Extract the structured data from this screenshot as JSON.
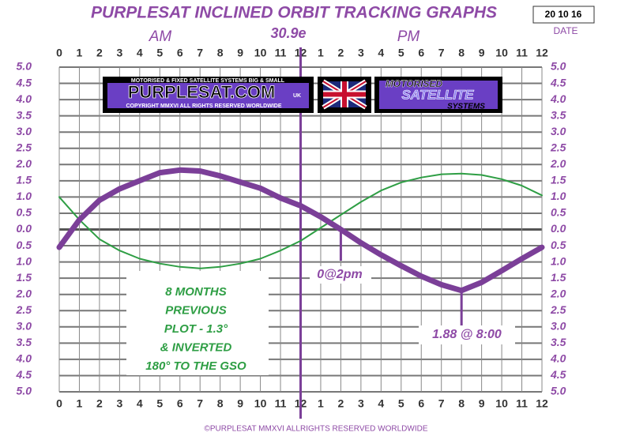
{
  "chart_data": {
    "type": "line",
    "title": "PURPLESAT INCLINED ORBIT TRACKING GRAPHS",
    "date": "20 10 16",
    "date_label": "DATE",
    "am_label": "AM",
    "pm_label": "PM",
    "position": "30.9e",
    "footer": "©PURPLESAT MMXVI ALLRIGHTS RESERVED WORLDWIDE",
    "banner": {
      "tagline": "MOTORISED & FIXED SATELLITE SYSTEMS BIG & SMALL",
      "site": "PURPLESAT.COM",
      "uk": "UK",
      "copyright": "COPYRIGHT MMXVI ALL RIGHTS RESERVED WORLDWIDE",
      "word1": "MOTORISED",
      "word2": "SATELLITE",
      "word3": "SYSTEMS"
    },
    "note_lines": [
      "8 MONTHS",
      "PREVIOUS",
      "PLOT - 1.3°",
      "& INVERTED",
      "180° TO THE GSO"
    ],
    "crossing_label": "0@2pm",
    "min_label": "1.88 @ 8:00",
    "x": [
      0,
      1,
      2,
      3,
      4,
      5,
      6,
      7,
      8,
      9,
      10,
      11,
      12,
      13,
      14,
      15,
      16,
      17,
      18,
      19,
      20,
      21,
      22,
      23,
      24
    ],
    "series": [
      {
        "color": "#7b3f98",
        "values": [
          -0.55,
          0.3,
          0.9,
          1.25,
          1.5,
          1.75,
          1.83,
          1.8,
          1.65,
          1.46,
          1.27,
          0.97,
          0.73,
          0.39,
          0,
          -0.41,
          -0.78,
          -1.12,
          -1.44,
          -1.7,
          -1.88,
          -1.63,
          -1.27,
          -0.9,
          -0.55
        ]
      },
      {
        "color": "#2e9e44",
        "values": [
          1.0,
          0.3,
          -0.3,
          -0.65,
          -0.9,
          -1.05,
          -1.15,
          -1.2,
          -1.15,
          -1.05,
          -0.9,
          -0.65,
          -0.35,
          0.05,
          0.45,
          0.85,
          1.2,
          1.45,
          1.6,
          1.7,
          1.72,
          1.68,
          1.55,
          1.35,
          1.05
        ]
      }
    ],
    "xlim": [
      0,
      24
    ],
    "xticks": [
      0,
      1,
      2,
      3,
      4,
      5,
      6,
      7,
      8,
      9,
      10,
      11,
      12,
      {
        "value": 13,
        "label": "1"
      },
      {
        "value": 14,
        "label": "2"
      },
      {
        "value": 15,
        "label": "3"
      },
      {
        "value": 16,
        "label": "4"
      },
      {
        "value": 17,
        "label": "5"
      },
      {
        "value": 18,
        "label": "6"
      },
      {
        "value": 19,
        "label": "7"
      },
      {
        "value": 20,
        "label": "8"
      },
      {
        "value": 21,
        "label": "9"
      },
      {
        "value": 22,
        "label": "10"
      },
      {
        "value": 23,
        "label": "11"
      },
      {
        "value": 24,
        "label": "12"
      }
    ],
    "ylim": [
      -5,
      5
    ],
    "yticks": [
      {
        "value": 5,
        "label": "5.0"
      },
      {
        "value": 4.5,
        "label": "4.5"
      },
      {
        "value": 4,
        "label": "4.0"
      },
      {
        "value": 3.5,
        "label": "3.5"
      },
      {
        "value": 3,
        "label": "3.0"
      },
      {
        "value": 2.5,
        "label": "2.5"
      },
      {
        "value": 2,
        "label": "2.0"
      },
      {
        "value": 1.5,
        "label": "1.5"
      },
      {
        "value": 1,
        "label": "1.0"
      },
      {
        "value": 0.5,
        "label": "0.5"
      },
      {
        "value": 0,
        "label": "0.0"
      },
      {
        "value": -0.5,
        "label": "0.5"
      },
      {
        "value": -1,
        "label": "1.0"
      },
      {
        "value": -1.5,
        "label": "1.5"
      },
      {
        "value": -2,
        "label": "2.0"
      },
      {
        "value": -2.5,
        "label": "2.5"
      },
      {
        "value": -3,
        "label": "3.0"
      },
      {
        "value": -3.5,
        "label": "3.5"
      },
      {
        "value": -4,
        "label": "4.0"
      },
      {
        "value": -4.5,
        "label": "4.5"
      },
      {
        "value": -5,
        "label": "5.0"
      }
    ],
    "grid": true,
    "marker_hour": 12,
    "crossing_hour": 14,
    "min_hour": 20
  }
}
